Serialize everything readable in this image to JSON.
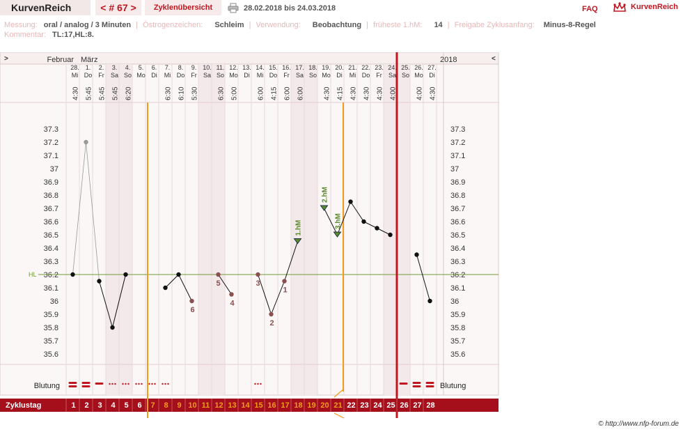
{
  "header": {
    "brand": "KurvenReich",
    "cycle_nav": "< # 67 >",
    "cycle_overview": "Zyklenübersicht",
    "date_range": "28.02.2018 bis 24.03.2018",
    "faq": "FAQ",
    "logo_text": "KurvenReich",
    "print_icon": "printer-icon",
    "logo_icon": "crown-icon"
  },
  "info": {
    "messung_label": "Messung:",
    "messung_value": "oral / analog / 3 Minuten",
    "oestrogen_label": "Östrogenzeichen:",
    "oestrogen_value": "Schleim",
    "verwendung_label": "Verwendung:",
    "verwendung_value": "Beobachtung",
    "frueheste_label": "früheste 1.hM:",
    "frueheste_value": "14",
    "freigabe_label": "Freigabe Zyklusanfang:",
    "freigabe_value": "Minus-8-Regel",
    "kommentar_label": "Kommentar:",
    "kommentar_value": "TL:17,HL:8."
  },
  "chart": {
    "nav_left": ">",
    "nav_right": "<",
    "month_feb": "Februar",
    "month_mar": "März",
    "year": "2018",
    "hl_label": "HL",
    "blutung_label": "Blutung",
    "zyklustag_label": "Zyklustag",
    "copyright": "© http://www.nfp-forum.de"
  },
  "chart_data": {
    "type": "line",
    "ylabel": "",
    "ylim": [
      35.5,
      37.4
    ],
    "yticks": [
      "37.3",
      "37.2",
      "37.1",
      "37",
      "36.9",
      "36.8",
      "36.7",
      "36.6",
      "36.5",
      "36.4",
      "36.3",
      "36.2",
      "36.1",
      "36",
      "35.9",
      "35.8",
      "35.7",
      "35.6"
    ],
    "coverline": 36.2,
    "days": [
      {
        "date": "28.",
        "dow": "Mi",
        "time": "4:30",
        "temp": 36.2,
        "bleed": "heavy",
        "cd": "1",
        "shade": false
      },
      {
        "date": "1.",
        "dow": "Do",
        "time": "5:45",
        "temp": 37.2,
        "bleed": "heavy",
        "cd": "2",
        "shade": false,
        "excluded": true
      },
      {
        "date": "2.",
        "dow": "Fr",
        "time": "5:45",
        "temp": 36.15,
        "bleed": "medium",
        "cd": "3",
        "shade": false
      },
      {
        "date": "3.",
        "dow": "Sa",
        "time": "5:45",
        "temp": 35.8,
        "bleed": "spotting",
        "cd": "4",
        "shade": true
      },
      {
        "date": "4.",
        "dow": "So",
        "time": "6:20",
        "temp": 36.2,
        "bleed": "spotting",
        "cd": "5",
        "shade": true
      },
      {
        "date": "5.",
        "dow": "Mo",
        "time": "",
        "temp": null,
        "bleed": "spotting",
        "cd": "6",
        "shade": false
      },
      {
        "date": "6.",
        "dow": "Di",
        "time": "",
        "temp": null,
        "bleed": "spotting",
        "cd": "7",
        "shade": false
      },
      {
        "date": "7.",
        "dow": "Mi",
        "time": "6:30",
        "temp": 36.1,
        "bleed": "spotting",
        "cd": "8",
        "shade": false
      },
      {
        "date": "8.",
        "dow": "Do",
        "time": "6:10",
        "temp": 36.2,
        "bleed": "",
        "cd": "9",
        "shade": false
      },
      {
        "date": "9.",
        "dow": "Fr",
        "time": "5:30",
        "temp": 36.0,
        "bleed": "",
        "cd": "10",
        "shade": false,
        "label": "6"
      },
      {
        "date": "10.",
        "dow": "Sa",
        "time": "",
        "temp": null,
        "bleed": "",
        "cd": "11",
        "shade": true
      },
      {
        "date": "11.",
        "dow": "So",
        "time": "6:30",
        "temp": 36.2,
        "bleed": "",
        "cd": "12",
        "shade": true,
        "label": "5"
      },
      {
        "date": "12.",
        "dow": "Mo",
        "time": "5:00",
        "temp": 36.05,
        "bleed": "",
        "cd": "13",
        "shade": false,
        "label": "4"
      },
      {
        "date": "13.",
        "dow": "Di",
        "time": "",
        "temp": null,
        "bleed": "",
        "cd": "14",
        "shade": false
      },
      {
        "date": "14.",
        "dow": "Mi",
        "time": "6:00",
        "temp": 36.2,
        "bleed": "spotting",
        "cd": "15",
        "shade": false,
        "label": "3"
      },
      {
        "date": "15.",
        "dow": "Do",
        "time": "4:15",
        "temp": 35.9,
        "bleed": "",
        "cd": "16",
        "shade": false,
        "label": "2"
      },
      {
        "date": "16.",
        "dow": "Fr",
        "time": "6:00",
        "temp": 36.15,
        "bleed": "",
        "cd": "17",
        "shade": false,
        "label": "1"
      },
      {
        "date": "17.",
        "dow": "Sa",
        "time": "6:00",
        "temp": 36.45,
        "bleed": "",
        "cd": "18",
        "shade": true,
        "hm": "1.hM"
      },
      {
        "date": "18.",
        "dow": "So",
        "time": "",
        "temp": null,
        "bleed": "",
        "cd": "19",
        "shade": true
      },
      {
        "date": "19.",
        "dow": "Mo",
        "time": "4:30",
        "temp": 36.7,
        "bleed": "",
        "cd": "20",
        "shade": false,
        "hm": "2.hM"
      },
      {
        "date": "20.",
        "dow": "Di",
        "time": "4:15",
        "temp": 36.5,
        "bleed": "",
        "cd": "21",
        "shade": false,
        "hm": "3.hM"
      },
      {
        "date": "21.",
        "dow": "Mi",
        "time": "4:30",
        "temp": 36.75,
        "bleed": "",
        "cd": "22",
        "shade": false
      },
      {
        "date": "22.",
        "dow": "Do",
        "time": "4:30",
        "temp": 36.6,
        "bleed": "",
        "cd": "23",
        "shade": false
      },
      {
        "date": "23.",
        "dow": "Fr",
        "time": "4:30",
        "temp": 36.55,
        "bleed": "",
        "cd": "24",
        "shade": false
      },
      {
        "date": "24.",
        "dow": "Sa",
        "time": "4:00",
        "temp": 36.5,
        "bleed": "",
        "cd": "25",
        "shade": true
      },
      {
        "date": "25.",
        "dow": "So",
        "time": "",
        "temp": null,
        "bleed": "medium",
        "cd": "26",
        "shade": true
      },
      {
        "date": "26.",
        "dow": "Mo",
        "time": "4:00",
        "temp": 36.35,
        "bleed": "heavy",
        "cd": "27",
        "shade": false
      },
      {
        "date": "27.",
        "dow": "Di",
        "time": "4:30",
        "temp": 36.0,
        "bleed": "heavy",
        "cd": "28",
        "shade": false
      }
    ],
    "orange_days": [
      "7",
      "8",
      "9",
      "10",
      "11",
      "12",
      "13",
      "14",
      "15",
      "16",
      "17",
      "18",
      "19",
      "20",
      "21"
    ],
    "colors": {
      "accent": "#c0161f",
      "bar": "#a50f1c",
      "orange_line": "#f29b1d",
      "coverline": "#6e9a3a",
      "hm_green": "#5a8a2e",
      "label_brown": "#8a5050",
      "shade": "#f3e8ea"
    }
  }
}
